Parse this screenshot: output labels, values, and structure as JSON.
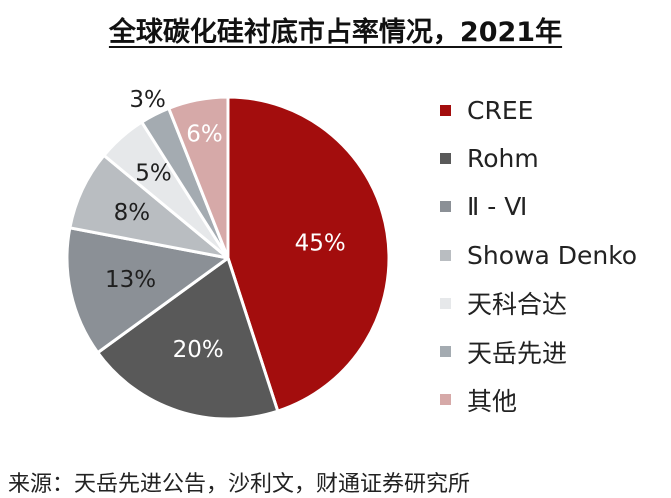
{
  "chart_data": {
    "type": "pie",
    "title": "全球碳化硅衬底市占率情况，2021年",
    "categories": [
      "CREE",
      "Rohm",
      "Ⅱ-Ⅵ",
      "Showa Denko",
      "天科合达",
      "天岳先进",
      "其他"
    ],
    "values": [
      45,
      20,
      13,
      8,
      5,
      3,
      6
    ],
    "value_labels": [
      "45%",
      "20%",
      "13%",
      "8%",
      "5%",
      "3%",
      "6%"
    ],
    "legend_labels": [
      "CREE",
      "Rohm",
      "Ⅱ - Ⅵ",
      "Showa Denko",
      "天科合达",
      "天岳先进",
      "其他"
    ],
    "colors": [
      "#a30d0d",
      "#595959",
      "#8b9096",
      "#b9bdc1",
      "#e6e8ea",
      "#a4abb1",
      "#d6a9a8"
    ],
    "legend_position": "right"
  },
  "source_note": "来源：天岳先进公告，沙利文，财通证券研究所"
}
